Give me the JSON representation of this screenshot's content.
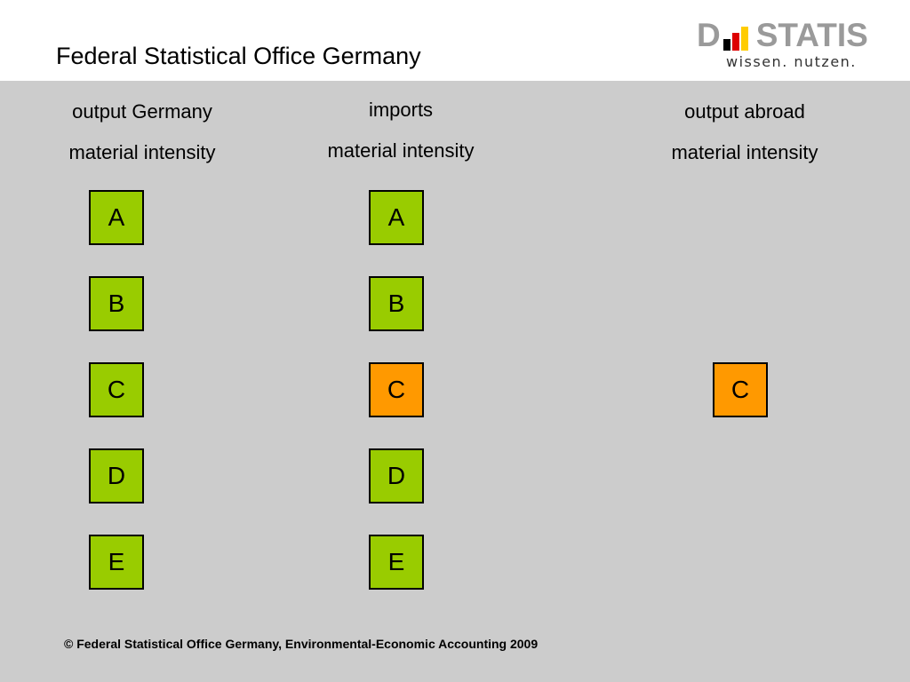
{
  "header": {
    "title": "Federal Statistical Office Germany",
    "logo": {
      "word_left": "D",
      "word_right": "STATIS",
      "tagline": "wissen. nutzen.",
      "flag_colors": [
        "#000000",
        "#dd0000",
        "#ffcc00"
      ]
    }
  },
  "columns": [
    {
      "title": "output Germany",
      "subtitle": "material intensity",
      "boxes": [
        {
          "label": "A",
          "color": "#99cc00"
        },
        {
          "label": "B",
          "color": "#99cc00"
        },
        {
          "label": "C",
          "color": "#99cc00"
        },
        {
          "label": "D",
          "color": "#99cc00"
        },
        {
          "label": "E",
          "color": "#99cc00"
        }
      ]
    },
    {
      "title": "imports",
      "subtitle": "material intensity",
      "boxes": [
        {
          "label": "A",
          "color": "#99cc00"
        },
        {
          "label": "B",
          "color": "#99cc00"
        },
        {
          "label": "C",
          "color": "#ff9900"
        },
        {
          "label": "D",
          "color": "#99cc00"
        },
        {
          "label": "E",
          "color": "#99cc00"
        }
      ]
    },
    {
      "title": "output abroad",
      "subtitle": "material intensity",
      "boxes": [
        {
          "label": "C",
          "color": "#ff9900"
        }
      ]
    }
  ],
  "footer": {
    "text": "© Federal Statistical Office Germany, Environmental-Economic Accounting 2009"
  }
}
